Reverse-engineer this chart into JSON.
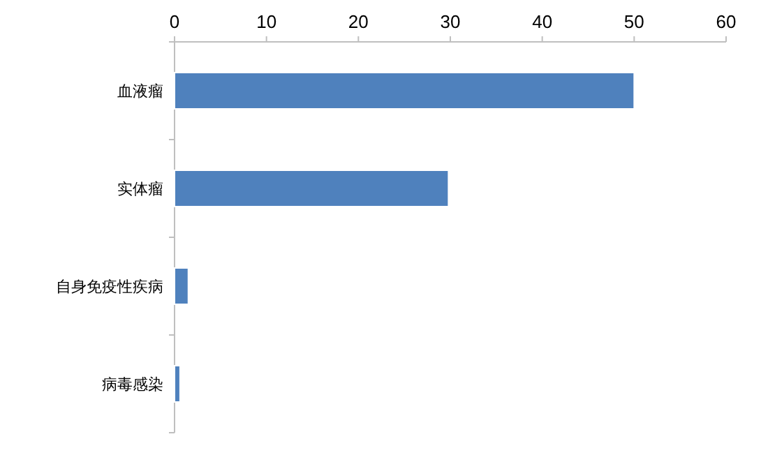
{
  "chart_data": {
    "type": "bar",
    "orientation": "horizontal",
    "categories": [
      "血液瘤",
      "实体瘤",
      "自身免疫性疾病",
      "病毒感染"
    ],
    "values": [
      50,
      29.8,
      1.5,
      0.6
    ],
    "color": "#4f81bd",
    "xlim": [
      0,
      60
    ],
    "xticks": [
      0,
      10,
      20,
      30,
      40,
      50,
      60
    ],
    "grid": false
  }
}
